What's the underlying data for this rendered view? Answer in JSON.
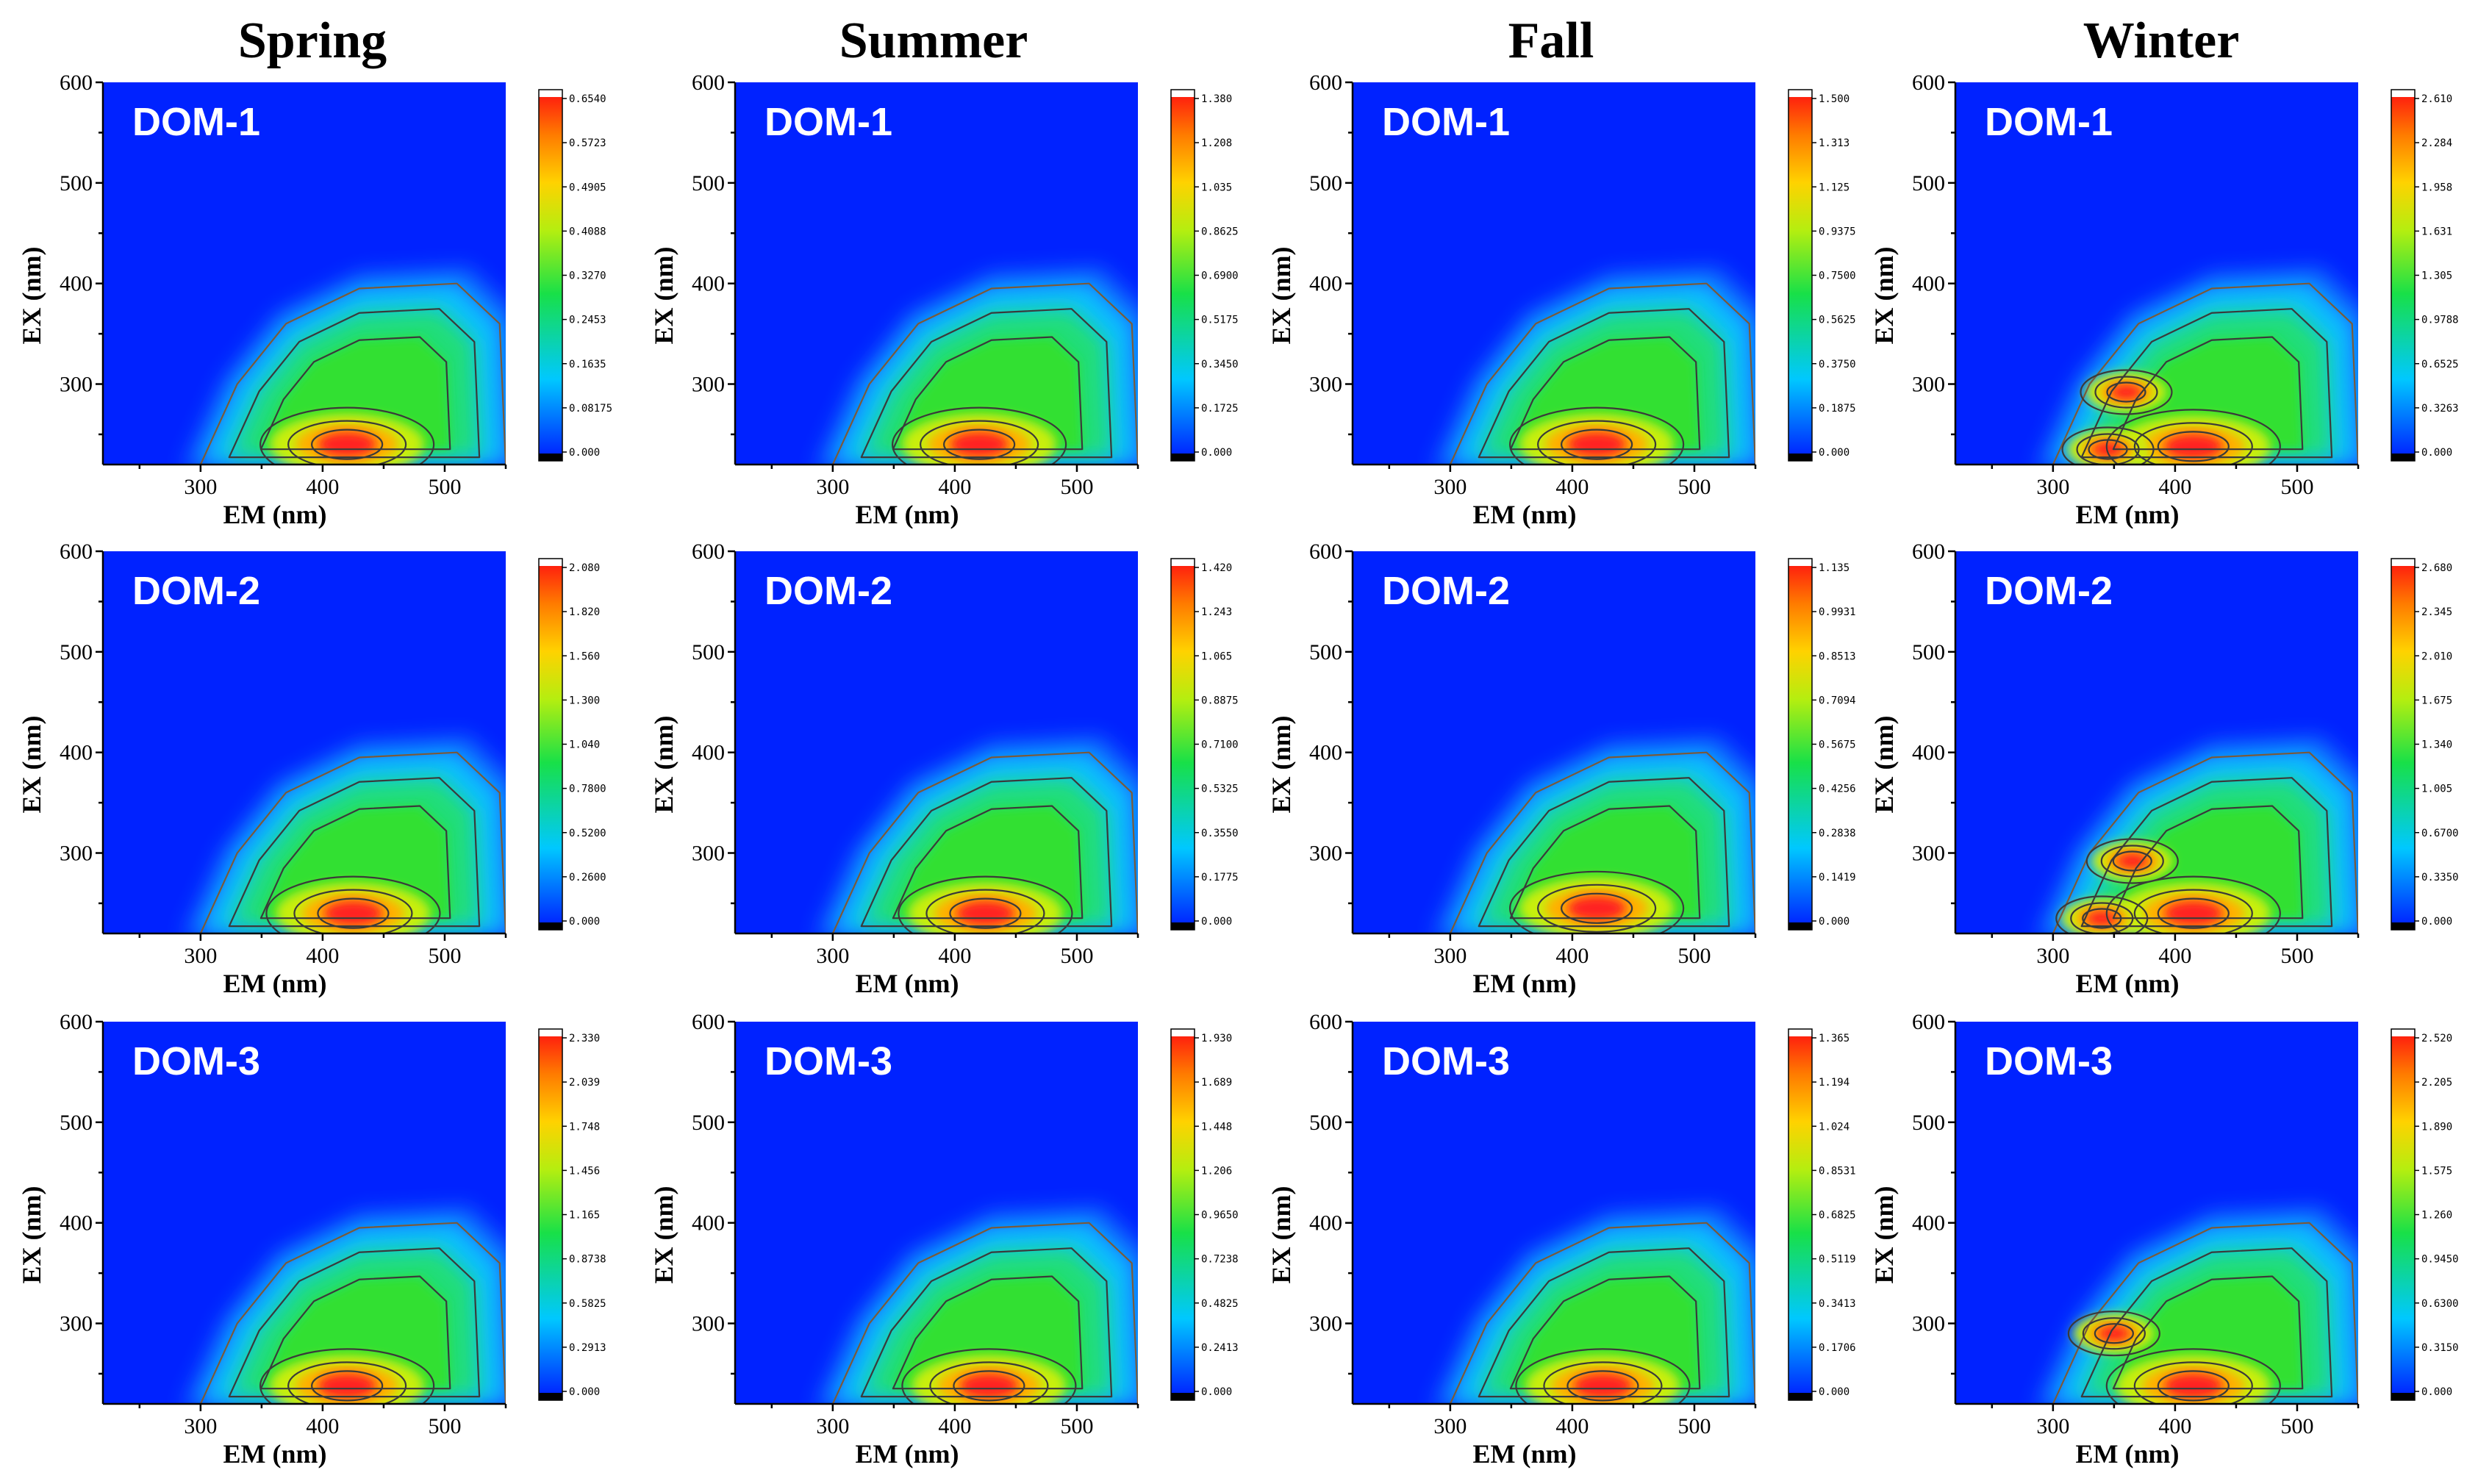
{
  "figure": {
    "season_titles": [
      "Spring",
      "Summer",
      "Fall",
      "Winter"
    ],
    "row_labels": [
      "DOM-1",
      "DOM-2",
      "DOM-3"
    ],
    "x_axis": {
      "label": "EM (nm)",
      "range": [
        220,
        550
      ],
      "ticks": [
        "300",
        "400",
        "500"
      ]
    },
    "y_axis": {
      "label": "EX (nm)",
      "range": [
        220,
        600
      ],
      "ticks": [
        "300",
        "400",
        "500",
        "600"
      ]
    },
    "colors": {
      "background": "#0022ff",
      "peak": "#ff2020",
      "contour": "#3a3a3a"
    }
  },
  "chart_data": [
    {
      "type": "heatmap",
      "season": "Spring",
      "sample": "DOM-1",
      "title": "DOM-1",
      "xlabel": "EM (nm)",
      "ylabel": "EX (nm)",
      "xlim": [
        220,
        550
      ],
      "ylim": [
        220,
        600
      ],
      "peaks": [
        {
          "em": 420,
          "ex": 240,
          "intensity": 0.654
        }
      ],
      "colorbar": [
        "0.6540",
        "0.5723",
        "0.4905",
        "0.4088",
        "0.3270",
        "0.2453",
        "0.1635",
        "0.08175",
        "0.000"
      ]
    },
    {
      "type": "heatmap",
      "season": "Summer",
      "sample": "DOM-1",
      "title": "DOM-1",
      "xlabel": "EM (nm)",
      "ylabel": "EX (nm)",
      "xlim": [
        220,
        550
      ],
      "ylim": [
        220,
        600
      ],
      "peaks": [
        {
          "em": 420,
          "ex": 240,
          "intensity": 1.38
        }
      ],
      "colorbar": [
        "1.380",
        "1.208",
        "1.035",
        "0.8625",
        "0.6900",
        "0.5175",
        "0.3450",
        "0.1725",
        "0.000"
      ]
    },
    {
      "type": "heatmap",
      "season": "Fall",
      "sample": "DOM-1",
      "title": "DOM-1",
      "xlabel": "EM (nm)",
      "ylabel": "EX (nm)",
      "xlim": [
        220,
        550
      ],
      "ylim": [
        220,
        600
      ],
      "peaks": [
        {
          "em": 420,
          "ex": 240,
          "intensity": 1.5
        }
      ],
      "colorbar": [
        "1.500",
        "1.313",
        "1.125",
        "0.9375",
        "0.7500",
        "0.5625",
        "0.3750",
        "0.1875",
        "0.000"
      ]
    },
    {
      "type": "heatmap",
      "season": "Winter",
      "sample": "DOM-1",
      "title": "DOM-1",
      "xlabel": "EM (nm)",
      "ylabel": "EX (nm)",
      "xlim": [
        220,
        550
      ],
      "ylim": [
        220,
        600
      ],
      "peaks": [
        {
          "em": 415,
          "ex": 238,
          "intensity": 2.61
        },
        {
          "em": 345,
          "ex": 235,
          "intensity": 2.0
        },
        {
          "em": 360,
          "ex": 292,
          "intensity": 1.9
        }
      ],
      "colorbar": [
        "2.610",
        "2.284",
        "1.958",
        "1.631",
        "1.305",
        "0.9788",
        "0.6525",
        "0.3263",
        "0.000"
      ]
    },
    {
      "type": "heatmap",
      "season": "Spring",
      "sample": "DOM-2",
      "title": "DOM-2",
      "xlabel": "EM (nm)",
      "ylabel": "EX (nm)",
      "xlim": [
        220,
        550
      ],
      "ylim": [
        220,
        600
      ],
      "peaks": [
        {
          "em": 425,
          "ex": 240,
          "intensity": 2.08
        }
      ],
      "colorbar": [
        "2.080",
        "1.820",
        "1.560",
        "1.300",
        "1.040",
        "0.7800",
        "0.5200",
        "0.2600",
        "0.000"
      ]
    },
    {
      "type": "heatmap",
      "season": "Summer",
      "sample": "DOM-2",
      "title": "DOM-2",
      "xlabel": "EM (nm)",
      "ylabel": "EX (nm)",
      "xlim": [
        220,
        550
      ],
      "ylim": [
        220,
        600
      ],
      "peaks": [
        {
          "em": 425,
          "ex": 240,
          "intensity": 1.42
        }
      ],
      "colorbar": [
        "1.420",
        "1.243",
        "1.065",
        "0.8875",
        "0.7100",
        "0.5325",
        "0.3550",
        "0.1775",
        "0.000"
      ]
    },
    {
      "type": "heatmap",
      "season": "Fall",
      "sample": "DOM-2",
      "title": "DOM-2",
      "xlabel": "EM (nm)",
      "ylabel": "EX (nm)",
      "xlim": [
        220,
        550
      ],
      "ylim": [
        220,
        600
      ],
      "peaks": [
        {
          "em": 420,
          "ex": 245,
          "intensity": 1.135
        }
      ],
      "colorbar": [
        "1.135",
        "0.9931",
        "0.8513",
        "0.7094",
        "0.5675",
        "0.4256",
        "0.2838",
        "0.1419",
        "0.000"
      ]
    },
    {
      "type": "heatmap",
      "season": "Winter",
      "sample": "DOM-2",
      "title": "DOM-2",
      "xlabel": "EM (nm)",
      "ylabel": "EX (nm)",
      "xlim": [
        220,
        550
      ],
      "ylim": [
        220,
        600
      ],
      "peaks": [
        {
          "em": 415,
          "ex": 240,
          "intensity": 2.68
        },
        {
          "em": 340,
          "ex": 235,
          "intensity": 2.3
        },
        {
          "em": 365,
          "ex": 292,
          "intensity": 2.1
        }
      ],
      "colorbar": [
        "2.680",
        "2.345",
        "2.010",
        "1.675",
        "1.340",
        "1.005",
        "0.6700",
        "0.3350",
        "0.000"
      ]
    },
    {
      "type": "heatmap",
      "season": "Spring",
      "sample": "DOM-3",
      "title": "DOM-3",
      "xlabel": "EM (nm)",
      "ylabel": "EX (nm)",
      "xlim": [
        220,
        550
      ],
      "ylim": [
        220,
        600
      ],
      "peaks": [
        {
          "em": 420,
          "ex": 238,
          "intensity": 2.33
        }
      ],
      "colorbar": [
        "2.330",
        "2.039",
        "1.748",
        "1.456",
        "1.165",
        "0.8738",
        "0.5825",
        "0.2913",
        "0.000"
      ]
    },
    {
      "type": "heatmap",
      "season": "Summer",
      "sample": "DOM-3",
      "title": "DOM-3",
      "xlabel": "EM (nm)",
      "ylabel": "EX (nm)",
      "xlim": [
        220,
        550
      ],
      "ylim": [
        220,
        600
      ],
      "peaks": [
        {
          "em": 428,
          "ex": 238,
          "intensity": 1.93
        }
      ],
      "colorbar": [
        "1.930",
        "1.689",
        "1.448",
        "1.206",
        "0.9650",
        "0.7238",
        "0.4825",
        "0.2413",
        "0.000"
      ]
    },
    {
      "type": "heatmap",
      "season": "Fall",
      "sample": "DOM-3",
      "title": "DOM-3",
      "xlabel": "EM (nm)",
      "ylabel": "EX (nm)",
      "xlim": [
        220,
        550
      ],
      "ylim": [
        220,
        600
      ],
      "peaks": [
        {
          "em": 425,
          "ex": 238,
          "intensity": 1.365
        }
      ],
      "colorbar": [
        "1.365",
        "1.194",
        "1.024",
        "0.8531",
        "0.6825",
        "0.5119",
        "0.3413",
        "0.1706",
        "0.000"
      ]
    },
    {
      "type": "heatmap",
      "season": "Winter",
      "sample": "DOM-3",
      "title": "DOM-3",
      "xlabel": "EM (nm)",
      "ylabel": "EX (nm)",
      "xlim": [
        220,
        550
      ],
      "ylim": [
        220,
        600
      ],
      "peaks": [
        {
          "em": 415,
          "ex": 238,
          "intensity": 2.52
        },
        {
          "em": 350,
          "ex": 290,
          "intensity": 1.7
        }
      ],
      "colorbar": [
        "2.520",
        "2.205",
        "1.890",
        "1.575",
        "1.260",
        "0.9450",
        "0.6300",
        "0.3150",
        "0.000"
      ]
    }
  ]
}
